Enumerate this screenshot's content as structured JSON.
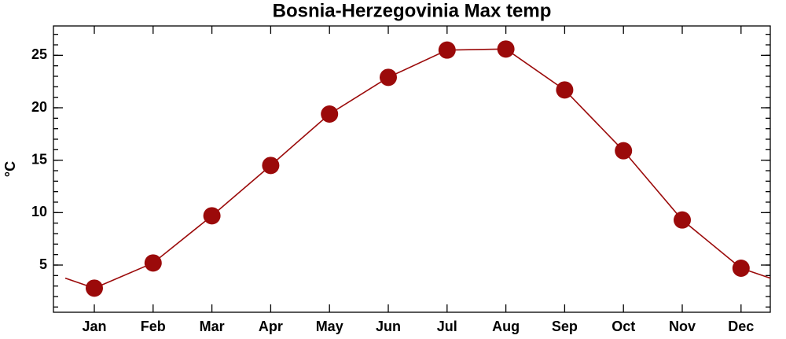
{
  "chart_data": {
    "type": "line",
    "title": "Bosnia-Herzegovinia Max temp",
    "y_label": "°C",
    "categories": [
      "Jan",
      "Feb",
      "Mar",
      "Apr",
      "May",
      "Jun",
      "Jul",
      "Aug",
      "Sep",
      "Oct",
      "Nov",
      "Dec"
    ],
    "series": [
      {
        "name": "Max temp",
        "color": "#9b0a0a",
        "values": [
          2.8,
          5.2,
          9.7,
          14.5,
          19.4,
          22.9,
          25.5,
          25.6,
          21.7,
          15.9,
          9.3,
          4.7
        ]
      }
    ],
    "ylim": [
      0.5,
      27.8
    ],
    "yticks": [
      5,
      10,
      15,
      20,
      25
    ],
    "grid": false
  }
}
